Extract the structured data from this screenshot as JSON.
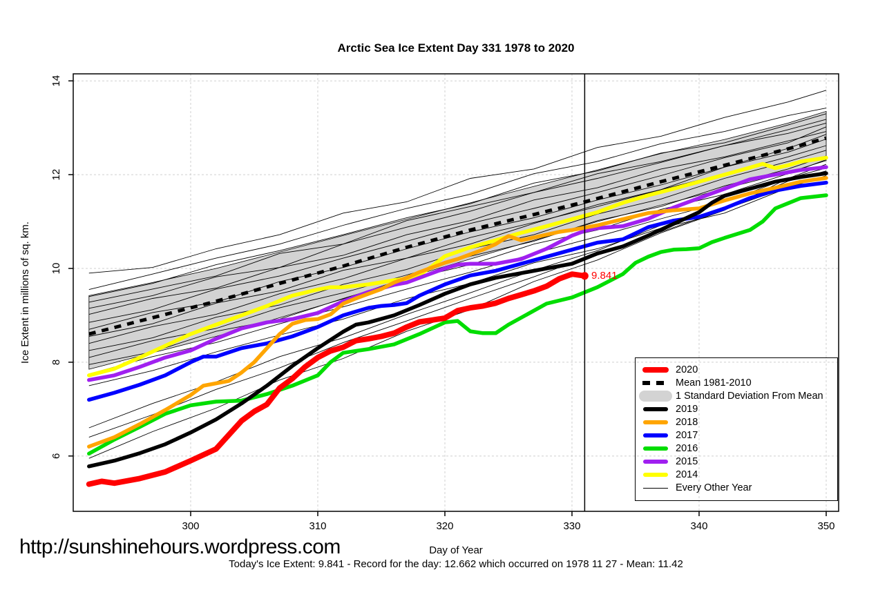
{
  "header": {
    "title": "Arctic Sea Ice Extent Day 331 1978 to 2020"
  },
  "footer": {
    "url": "http://sunshinehours.wordpress.com",
    "xlabel": "Day of Year",
    "info": "Today's Ice Extent: 9.841  - Record for the day: 12.662 which occurred on 1978 11 27  - Mean: 11.42"
  },
  "annotation": {
    "label": "9.841",
    "day": 331,
    "value": 9.841,
    "color": "#FF0000"
  },
  "legend": {
    "items": [
      {
        "label": "2020",
        "color": "#FF0000",
        "kind": "thick-line"
      },
      {
        "label": "Mean 1981-2010",
        "color": "#000000",
        "kind": "dashed-line"
      },
      {
        "label": "1 Standard Deviation From Mean",
        "color": "#D3D3D3",
        "kind": "band"
      },
      {
        "label": "2019",
        "color": "#000000",
        "kind": "line"
      },
      {
        "label": "2018",
        "color": "#FFA500",
        "kind": "line"
      },
      {
        "label": "2017",
        "color": "#0000FF",
        "kind": "line"
      },
      {
        "label": "2016",
        "color": "#00DD00",
        "kind": "line"
      },
      {
        "label": "2015",
        "color": "#A020F0",
        "kind": "line"
      },
      {
        "label": "2014",
        "color": "#FFFF00",
        "kind": "line"
      },
      {
        "label": "Every Other Year",
        "color": "#000000",
        "kind": "thin-line"
      }
    ]
  },
  "chart_data": {
    "type": "line",
    "title": "Arctic Sea Ice Extent Day 331 1978 to 2020",
    "xlabel": "Day of Year",
    "ylabel": "Ice Extent in millions of sq. km.",
    "grid": true,
    "grid_color": "#CFCFCF",
    "x_axis": {
      "min": 290.76,
      "max": 350.98,
      "ticks": [
        300,
        310,
        320,
        330,
        340,
        350
      ]
    },
    "y_axis": {
      "min": 4.82,
      "max": 14.15,
      "ticks": [
        6,
        8,
        10,
        12,
        14
      ]
    },
    "vline": {
      "day": 331
    },
    "band": {
      "name": "1 Standard Deviation From Mean",
      "color": "#D3D3D3",
      "days": [
        292,
        297,
        302,
        307,
        312,
        317,
        322,
        327,
        332,
        337,
        342,
        347,
        350
      ],
      "upper": [
        9.42,
        9.7,
        10.0,
        10.35,
        10.7,
        11.05,
        11.4,
        11.75,
        12.1,
        12.45,
        12.75,
        13.1,
        13.35
      ],
      "lower": [
        7.85,
        8.2,
        8.55,
        8.95,
        9.35,
        9.8,
        10.2,
        10.6,
        11.0,
        11.35,
        11.7,
        12.05,
        12.3
      ]
    },
    "mean_line": {
      "name": "Mean 1981-2010",
      "color": "#000000",
      "days": [
        292,
        297,
        302,
        307,
        312,
        317,
        322,
        327,
        331,
        337,
        342,
        347,
        350
      ],
      "values": [
        8.6,
        8.95,
        9.3,
        9.68,
        10.05,
        10.45,
        10.82,
        11.15,
        11.42,
        11.85,
        12.2,
        12.55,
        12.78
      ]
    },
    "series": [
      {
        "name": "2014",
        "color": "#FFFF00",
        "width": 5.5,
        "days": [
          292,
          294,
          296,
          298,
          300,
          302,
          304,
          306,
          308,
          310,
          311,
          312,
          314,
          316,
          317,
          318,
          319,
          320,
          322,
          324,
          326,
          328,
          330,
          332,
          334,
          336,
          338,
          340,
          342,
          344,
          345,
          346,
          347,
          348,
          350
        ],
        "values": [
          7.72,
          7.86,
          8.1,
          8.35,
          8.6,
          8.8,
          9.0,
          9.2,
          9.42,
          9.55,
          9.6,
          9.6,
          9.66,
          9.75,
          9.78,
          9.86,
          10.05,
          10.26,
          10.45,
          10.6,
          10.76,
          10.9,
          11.05,
          11.2,
          11.4,
          11.56,
          11.7,
          11.85,
          12.0,
          12.15,
          12.23,
          12.14,
          12.2,
          12.28,
          12.36
        ]
      },
      {
        "name": "2015",
        "color": "#A020F0",
        "width": 5.5,
        "days": [
          292,
          294,
          296,
          298,
          300,
          302,
          304,
          306,
          308,
          310,
          312,
          314,
          316,
          317,
          318,
          320,
          321,
          322,
          324,
          326,
          328,
          330,
          331,
          332,
          334,
          336,
          338,
          340,
          342,
          344,
          346,
          348,
          350
        ],
        "values": [
          7.62,
          7.72,
          7.9,
          8.1,
          8.25,
          8.5,
          8.72,
          8.85,
          8.92,
          9.05,
          9.3,
          9.5,
          9.65,
          9.7,
          9.8,
          10.0,
          10.08,
          10.1,
          10.1,
          10.2,
          10.42,
          10.7,
          10.8,
          10.86,
          10.9,
          11.06,
          11.3,
          11.5,
          11.7,
          11.9,
          12.0,
          12.1,
          12.16
        ]
      },
      {
        "name": "2016",
        "color": "#00DD00",
        "width": 5.5,
        "days": [
          292,
          294,
          296,
          298,
          300,
          302,
          304,
          306,
          308,
          310,
          311,
          312,
          314,
          316,
          318,
          320,
          321,
          322,
          323,
          324,
          325,
          326,
          328,
          330,
          332,
          334,
          335,
          336,
          337,
          338,
          339,
          340,
          341,
          342,
          344,
          345,
          346,
          348,
          350
        ],
        "values": [
          6.05,
          6.35,
          6.62,
          6.9,
          7.08,
          7.16,
          7.18,
          7.32,
          7.5,
          7.72,
          8.0,
          8.2,
          8.28,
          8.38,
          8.6,
          8.85,
          8.88,
          8.66,
          8.62,
          8.62,
          8.8,
          8.95,
          9.25,
          9.38,
          9.6,
          9.88,
          10.12,
          10.25,
          10.35,
          10.4,
          10.41,
          10.43,
          10.56,
          10.65,
          10.82,
          11.0,
          11.28,
          11.5,
          11.56
        ]
      },
      {
        "name": "2017",
        "color": "#0000FF",
        "width": 5.5,
        "days": [
          292,
          294,
          296,
          298,
          300,
          301,
          302,
          304,
          306,
          308,
          310,
          312,
          313,
          314,
          315,
          316,
          317,
          318,
          320,
          322,
          324,
          326,
          328,
          330,
          332,
          334,
          336,
          338,
          340,
          342,
          344,
          346,
          348,
          350
        ],
        "values": [
          7.2,
          7.35,
          7.52,
          7.72,
          8.0,
          8.12,
          8.12,
          8.3,
          8.4,
          8.55,
          8.75,
          9.0,
          9.08,
          9.16,
          9.2,
          9.22,
          9.26,
          9.42,
          9.66,
          9.85,
          9.95,
          10.1,
          10.25,
          10.4,
          10.55,
          10.62,
          10.88,
          11.02,
          11.1,
          11.28,
          11.5,
          11.66,
          11.76,
          11.83
        ]
      },
      {
        "name": "2018",
        "color": "#FFA500",
        "width": 5.5,
        "days": [
          292,
          294,
          296,
          298,
          300,
          301,
          302,
          303,
          304,
          305,
          306,
          307,
          308,
          309,
          310,
          311,
          312,
          313,
          314,
          315,
          316,
          317,
          318,
          319,
          320,
          321,
          322,
          323,
          324,
          325,
          326,
          327,
          328,
          329,
          330,
          331,
          332,
          334,
          336,
          338,
          340,
          342,
          344,
          346,
          348,
          350
        ],
        "values": [
          6.2,
          6.4,
          6.68,
          6.98,
          7.3,
          7.5,
          7.55,
          7.6,
          7.78,
          8.0,
          8.3,
          8.6,
          8.82,
          8.9,
          8.92,
          9.02,
          9.25,
          9.36,
          9.46,
          9.56,
          9.7,
          9.8,
          9.92,
          10.02,
          10.12,
          10.2,
          10.3,
          10.4,
          10.52,
          10.69,
          10.6,
          10.66,
          10.72,
          10.78,
          10.82,
          10.87,
          10.92,
          11.05,
          11.18,
          11.24,
          11.28,
          11.45,
          11.6,
          11.72,
          11.85,
          11.93
        ]
      },
      {
        "name": "2019",
        "color": "#000000",
        "width": 5.5,
        "days": [
          292,
          294,
          296,
          298,
          300,
          302,
          304,
          306,
          308,
          310,
          312,
          313,
          314,
          316,
          318,
          320,
          322,
          324,
          326,
          328,
          330,
          332,
          334,
          336,
          338,
          340,
          341,
          342,
          344,
          346,
          348,
          350
        ],
        "values": [
          5.78,
          5.9,
          6.06,
          6.25,
          6.5,
          6.78,
          7.12,
          7.5,
          7.92,
          8.3,
          8.65,
          8.8,
          8.85,
          9.0,
          9.22,
          9.46,
          9.66,
          9.8,
          9.9,
          10.0,
          10.1,
          10.32,
          10.47,
          10.7,
          10.95,
          11.2,
          11.4,
          11.55,
          11.7,
          11.85,
          11.95,
          12.03
        ]
      },
      {
        "name": "2020",
        "color": "#FF0000",
        "width": 8,
        "days": [
          292,
          293,
          294,
          296,
          298,
          300,
          302,
          304,
          305,
          306,
          307,
          308,
          309,
          310,
          311,
          312,
          313,
          314,
          315,
          316,
          317,
          318,
          319,
          320,
          321,
          322,
          323,
          324,
          325,
          326,
          327,
          328,
          329,
          330,
          331
        ],
        "values": [
          5.4,
          5.46,
          5.42,
          5.52,
          5.66,
          5.9,
          6.15,
          6.75,
          6.95,
          7.1,
          7.45,
          7.65,
          7.9,
          8.1,
          8.24,
          8.32,
          8.46,
          8.5,
          8.55,
          8.62,
          8.75,
          8.86,
          8.9,
          8.94,
          9.1,
          9.16,
          9.2,
          9.26,
          9.36,
          9.44,
          9.52,
          9.62,
          9.78,
          9.88,
          9.841
        ]
      }
    ],
    "thin_lines": {
      "name": "Every Other Year",
      "color": "#000000",
      "days": [
        292,
        297,
        302,
        307,
        312,
        317,
        322,
        327,
        332,
        337,
        342,
        347,
        350
      ],
      "lines": [
        [
          9.9,
          10.02,
          10.42,
          10.72,
          11.18,
          11.42,
          11.92,
          12.12,
          12.58,
          12.82,
          13.22,
          13.55,
          13.8
        ],
        [
          9.55,
          9.88,
          10.22,
          10.52,
          10.92,
          11.28,
          11.58,
          12.02,
          12.28,
          12.66,
          12.92,
          13.26,
          13.42
        ],
        [
          9.4,
          9.68,
          10.08,
          10.38,
          10.72,
          11.08,
          11.38,
          11.82,
          12.08,
          12.46,
          12.68,
          13.06,
          13.3
        ],
        [
          9.28,
          9.56,
          9.84,
          10.32,
          10.52,
          11.02,
          11.32,
          11.62,
          12.02,
          12.28,
          12.62,
          12.88,
          13.1
        ],
        [
          9.15,
          9.42,
          9.82,
          10.02,
          10.52,
          10.88,
          11.22,
          11.62,
          11.92,
          12.26,
          12.62,
          12.96,
          13.18
        ],
        [
          9.02,
          9.36,
          9.58,
          10.02,
          10.28,
          10.72,
          11.02,
          11.46,
          11.72,
          12.12,
          12.38,
          12.72,
          12.92
        ],
        [
          8.85,
          9.12,
          9.56,
          9.84,
          10.22,
          10.58,
          10.96,
          11.28,
          11.62,
          11.98,
          12.36,
          12.68,
          13.02
        ],
        [
          8.7,
          9.06,
          9.28,
          9.72,
          10.02,
          10.42,
          10.78,
          11.08,
          11.46,
          11.78,
          12.16,
          12.48,
          12.76
        ],
        [
          8.55,
          8.82,
          9.26,
          9.52,
          9.96,
          10.22,
          10.66,
          10.98,
          11.32,
          11.68,
          12.02,
          12.38,
          12.62
        ],
        [
          8.4,
          8.76,
          9.02,
          9.46,
          9.78,
          10.22,
          10.52,
          10.96,
          11.36,
          11.68,
          12.16,
          12.56,
          12.86
        ],
        [
          8.25,
          8.52,
          8.96,
          9.22,
          9.66,
          9.98,
          10.42,
          10.72,
          11.16,
          11.48,
          11.92,
          12.28,
          12.52
        ],
        [
          8.1,
          8.46,
          8.72,
          9.16,
          9.48,
          9.86,
          10.26,
          10.58,
          11.02,
          11.32,
          11.76,
          12.12,
          12.4
        ],
        [
          7.95,
          8.22,
          8.66,
          8.92,
          9.36,
          9.76,
          10.08,
          10.52,
          10.82,
          11.26,
          11.58,
          12.02,
          12.32
        ],
        [
          7.75,
          8.12,
          8.42,
          8.82,
          9.18,
          9.56,
          9.92,
          10.32,
          10.68,
          11.06,
          11.42,
          11.92,
          12.14
        ],
        [
          7.5,
          7.82,
          8.22,
          8.58,
          8.92,
          9.36,
          9.68,
          10.12,
          10.42,
          10.86,
          11.18,
          11.72,
          11.98
        ],
        [
          6.6,
          7.12,
          7.58,
          8.12,
          8.52,
          9.02,
          9.48,
          9.96,
          10.38,
          10.92,
          11.28,
          11.86,
          12.08
        ],
        [
          6.4,
          6.88,
          7.42,
          7.88,
          8.42,
          8.88,
          9.36,
          9.82,
          10.32,
          10.78,
          11.26,
          11.74,
          11.96
        ],
        [
          5.95,
          6.52,
          7.02,
          7.62,
          8.08,
          8.66,
          9.12,
          9.72,
          10.18,
          10.76,
          11.24,
          11.92,
          12.22
        ]
      ]
    }
  }
}
